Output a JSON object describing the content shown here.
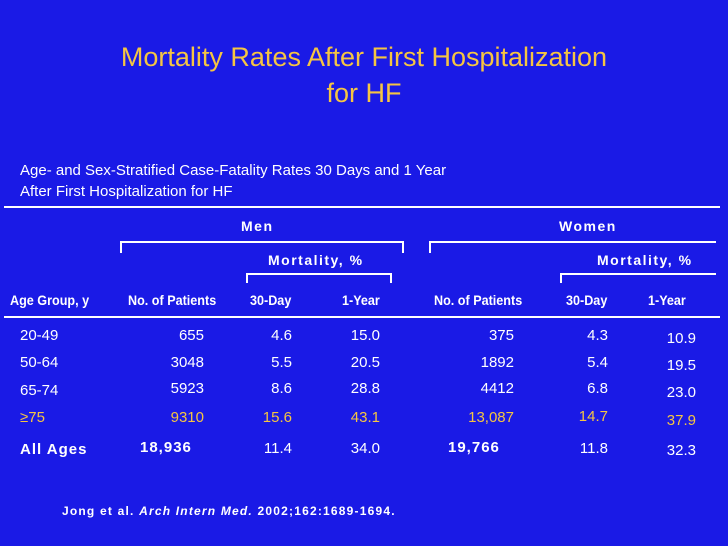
{
  "slide": {
    "title_line1": "Mortality Rates After First Hospitalization",
    "title_line2": "for HF",
    "subtitle_line1": "Age- and Sex-Stratified Case-Fatality Rates 30 Days and 1 Year",
    "subtitle_line2": "After First Hospitalization for HF",
    "colors": {
      "background": "#1a1ae6",
      "title": "#f5c542",
      "text": "#ffffff",
      "highlight": "#f5c542"
    }
  },
  "table": {
    "group_men": "Men",
    "group_women": "Women",
    "mortality_label_men": "Mortality, %",
    "mortality_label_women": "Mortality, %",
    "headers": {
      "age_group": "Age Group, y",
      "men_patients": "No. of Patients",
      "men_30day": "30-Day",
      "men_1year": "1-Year",
      "women_patients": "No. of Patients",
      "women_30day": "30-Day",
      "women_1year": "1-Year"
    },
    "rows": [
      {
        "age": "20-49",
        "men_patients": "655",
        "men_30day": "4.6",
        "men_1year": "15.0",
        "women_patients": "375",
        "women_30day": "4.3",
        "women_1year": "10.9"
      },
      {
        "age": "50-64",
        "men_patients": "3048",
        "men_30day": "5.5",
        "men_1year": "20.5",
        "women_patients": "1892",
        "women_30day": "5.4",
        "women_1year": "19.5"
      },
      {
        "age": "65-74",
        "men_patients": "5923",
        "men_30day": "8.6",
        "men_1year": "28.8",
        "women_patients": "4412",
        "women_30day": "6.8",
        "women_1year": "23.0"
      },
      {
        "age": "≥75",
        "men_patients": "9310",
        "men_30day": "15.6",
        "men_1year": "43.1",
        "women_patients": "13,087",
        "women_30day": "14.7",
        "women_1year": "37.9"
      },
      {
        "age": "All Ages",
        "men_patients": "18,936",
        "men_30day": "11.4",
        "men_1year": "34.0",
        "women_patients": "19,766",
        "women_30day": "11.8",
        "women_1year": "32.3"
      }
    ]
  },
  "citation": {
    "authors": "Jong et al.",
    "journal": "Arch Intern Med.",
    "details": "2002;162:1689-1694."
  }
}
